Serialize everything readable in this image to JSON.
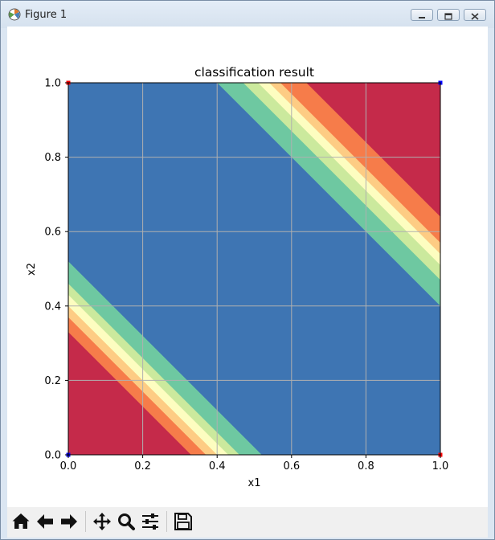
{
  "window": {
    "title": "Figure 1"
  },
  "toolbar": {
    "buttons": [
      "home",
      "back",
      "forward",
      "pan",
      "zoom",
      "configure-subplots",
      "save"
    ]
  },
  "colors": {
    "class_low": "#3e75b3",
    "band_1": "#6ec8a1",
    "band_2": "#cbe99d",
    "band_3": "#fdfdc0",
    "band_4": "#fdcc84",
    "band_5": "#f67c4a",
    "class_high": "#c52a4a",
    "marker_red": "#ff0000",
    "marker_blue": "#0000ff"
  },
  "chart_data": {
    "type": "heatmap",
    "title": "classification result",
    "xlabel": "x1",
    "ylabel": "x2",
    "xlim": [
      0.0,
      1.0
    ],
    "ylim": [
      0.0,
      1.0
    ],
    "xticks": [
      "0.0",
      "0.2",
      "0.4",
      "0.6",
      "0.8",
      "1.0"
    ],
    "yticks": [
      "0.0",
      "0.2",
      "0.4",
      "0.6",
      "0.8",
      "1.0"
    ],
    "grid": true,
    "contour_levels_lower_left": [
      0.52,
      0.46,
      0.43,
      0.4,
      0.37,
      0.33
    ],
    "contour_levels_upper_right": [
      1.4,
      1.47,
      1.51,
      1.54,
      1.57,
      1.64
    ],
    "points": [
      {
        "x": 0,
        "y": 0,
        "class": "blue"
      },
      {
        "x": 1,
        "y": 1,
        "class": "blue"
      },
      {
        "x": 0,
        "y": 1,
        "class": "red"
      },
      {
        "x": 1,
        "y": 0,
        "class": "red"
      }
    ]
  }
}
